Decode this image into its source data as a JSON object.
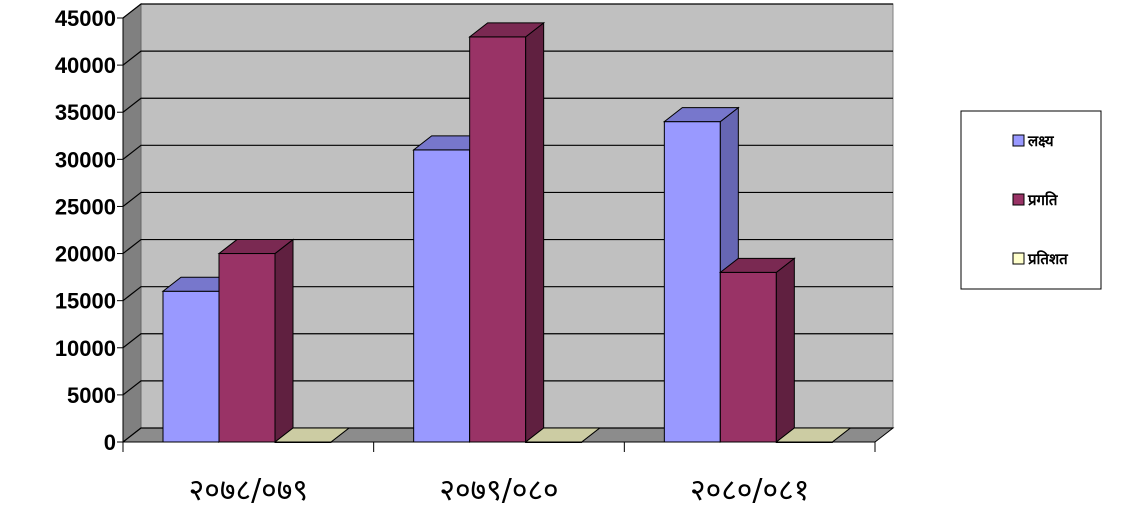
{
  "chart_data": {
    "type": "bar",
    "categories": [
      "२०७८/०७९",
      "२०७९/०८०",
      "२०८०/०८१"
    ],
    "series": [
      {
        "name": "लक्ष्य",
        "values": [
          16000,
          31000,
          34000
        ],
        "color": "#9999FF",
        "side_color": "#6666B3",
        "top_color": "#7777CC"
      },
      {
        "name": "प्रगति",
        "values": [
          20000,
          43000,
          18000
        ],
        "color": "#993366",
        "side_color": "#602040",
        "top_color": "#7A2952"
      },
      {
        "name": "प्रतिशत",
        "values": [
          0,
          0,
          0
        ],
        "color": "#FFFFCC",
        "side_color": "#B3B38F",
        "top_color": "#CCCCA3"
      }
    ],
    "ylim": [
      0,
      45000
    ],
    "yticks": [
      "0",
      "5000",
      "10000",
      "15000",
      "20000",
      "25000",
      "30000",
      "35000",
      "40000",
      "45000"
    ],
    "grid": true,
    "legend": "right",
    "three_d": true,
    "wall_color": "#C0C0C0",
    "side_wall_color": "#808080",
    "floor_color": "#8C8C8C"
  }
}
